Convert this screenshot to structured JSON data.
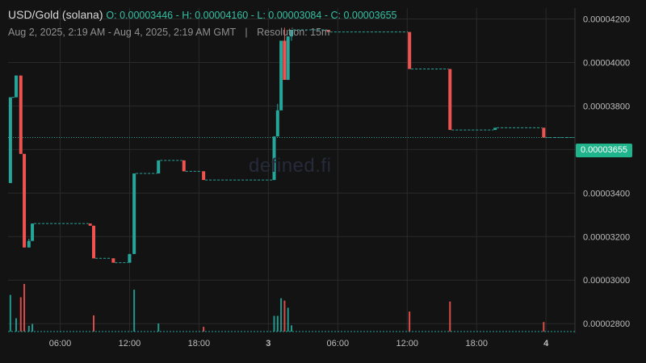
{
  "header": {
    "pair": "USD/Gold (solana)",
    "open_label": "O:",
    "open": "0.00003446",
    "high_label": "H:",
    "high": "0.00004160",
    "low_label": "L:",
    "low": "0.00003084",
    "close_label": "C:",
    "close": "0.00003655",
    "range": "Aug 2, 2025, 2:19 AM - Aug 4, 2025, 2:19 AM GMT",
    "separator": "|",
    "resolution": "Resolution: 15m"
  },
  "watermark": "defined.fi",
  "current_price": "0.00003655",
  "colors": {
    "up": "#26a69a",
    "down": "#ef5350",
    "bg": "#131313",
    "grid": "#2a2a2a",
    "tag": "#1fb48c"
  },
  "chart_data": {
    "type": "candlestick",
    "x_ticks": [
      {
        "label": "06:00",
        "hour": 4
      },
      {
        "label": "12:00",
        "hour": 10
      },
      {
        "label": "18:00",
        "hour": 16
      },
      {
        "label": "3",
        "hour": 22,
        "bold": true
      },
      {
        "label": "06:00",
        "hour": 28
      },
      {
        "label": "12:00",
        "hour": 34
      },
      {
        "label": "18:00",
        "hour": 40
      },
      {
        "label": "4",
        "hour": 46,
        "bold": true
      }
    ],
    "y_ticks": [
      "0.00004200",
      "0.00004000",
      "0.00003800",
      "0.00003600",
      "0.00003400",
      "0.00003200",
      "0.00003000",
      "0.00002800"
    ],
    "y_tick_values": [
      4.2,
      4.0,
      3.8,
      3.6,
      3.4,
      3.2,
      3.0,
      2.8
    ],
    "ylim": [
      2.76,
      4.25
    ],
    "y_unit_scale": 1e-05,
    "x_range_hours": [
      -0.5,
      48.5
    ],
    "candles": [
      {
        "t": -0.3,
        "o": 3.446,
        "h": 3.84,
        "l": 3.446,
        "c": 3.84
      },
      {
        "t": 0.2,
        "o": 3.84,
        "h": 3.94,
        "l": 3.84,
        "c": 3.94
      },
      {
        "t": 0.6,
        "o": 3.94,
        "h": 3.94,
        "l": 3.58,
        "c": 3.58
      },
      {
        "t": 0.9,
        "o": 3.58,
        "h": 3.58,
        "l": 3.15,
        "c": 3.15
      },
      {
        "t": 1.3,
        "o": 3.15,
        "h": 3.19,
        "l": 3.15,
        "c": 3.18
      },
      {
        "t": 1.6,
        "o": 3.18,
        "h": 3.26,
        "l": 3.18,
        "c": 3.26
      },
      {
        "t": 6.6,
        "o": 3.26,
        "h": 3.26,
        "l": 3.25,
        "c": 3.25
      },
      {
        "t": 6.9,
        "o": 3.25,
        "h": 3.25,
        "l": 3.1,
        "c": 3.1
      },
      {
        "t": 8.6,
        "o": 3.1,
        "h": 3.1,
        "l": 3.08,
        "c": 3.08
      },
      {
        "t": 10.0,
        "o": 3.08,
        "h": 3.12,
        "l": 3.08,
        "c": 3.12
      },
      {
        "t": 10.4,
        "o": 3.12,
        "h": 3.49,
        "l": 3.12,
        "c": 3.49
      },
      {
        "t": 12.5,
        "o": 3.49,
        "h": 3.55,
        "l": 3.49,
        "c": 3.55
      },
      {
        "t": 14.7,
        "o": 3.55,
        "h": 3.55,
        "l": 3.5,
        "c": 3.5
      },
      {
        "t": 16.4,
        "o": 3.5,
        "h": 3.5,
        "l": 3.46,
        "c": 3.46
      },
      {
        "t": 22.5,
        "o": 3.46,
        "h": 3.66,
        "l": 3.46,
        "c": 3.66
      },
      {
        "t": 22.8,
        "o": 3.66,
        "h": 3.81,
        "l": 3.66,
        "c": 3.78
      },
      {
        "t": 23.1,
        "o": 3.78,
        "h": 4.1,
        "l": 3.78,
        "c": 4.1
      },
      {
        "t": 23.4,
        "o": 4.1,
        "h": 4.16,
        "l": 3.92,
        "c": 3.92
      },
      {
        "t": 23.7,
        "o": 3.92,
        "h": 4.12,
        "l": 3.92,
        "c": 4.12
      },
      {
        "t": 24.0,
        "o": 4.12,
        "h": 4.15,
        "l": 4.1,
        "c": 4.15
      },
      {
        "t": 27.2,
        "o": 4.15,
        "h": 4.15,
        "l": 4.14,
        "c": 4.14
      },
      {
        "t": 34.2,
        "o": 4.14,
        "h": 4.14,
        "l": 3.97,
        "c": 3.97
      },
      {
        "t": 37.7,
        "o": 3.97,
        "h": 3.97,
        "l": 3.69,
        "c": 3.69
      },
      {
        "t": 41.6,
        "o": 3.69,
        "h": 3.7,
        "l": 3.69,
        "c": 3.7
      },
      {
        "t": 45.8,
        "o": 3.7,
        "h": 3.7,
        "l": 3.655,
        "c": 3.655
      }
    ],
    "volume_max": 1.0,
    "volumes": [
      {
        "t": -0.3,
        "v": 0.77,
        "up": true
      },
      {
        "t": 0.2,
        "v": 0.28,
        "up": true
      },
      {
        "t": 0.6,
        "v": 0.72,
        "up": false
      },
      {
        "t": 0.9,
        "v": 1.0,
        "up": false
      },
      {
        "t": 1.3,
        "v": 0.12,
        "up": true
      },
      {
        "t": 1.6,
        "v": 0.16,
        "up": true
      },
      {
        "t": 6.9,
        "v": 0.34,
        "up": false
      },
      {
        "t": 10.4,
        "v": 0.88,
        "up": true
      },
      {
        "t": 12.5,
        "v": 0.17,
        "up": true
      },
      {
        "t": 16.4,
        "v": 0.1,
        "up": false
      },
      {
        "t": 22.5,
        "v": 0.33,
        "up": true
      },
      {
        "t": 22.8,
        "v": 0.33,
        "up": true
      },
      {
        "t": 23.1,
        "v": 0.7,
        "up": true
      },
      {
        "t": 23.4,
        "v": 0.65,
        "up": false
      },
      {
        "t": 23.7,
        "v": 0.5,
        "up": true
      },
      {
        "t": 24.0,
        "v": 0.13,
        "up": true
      },
      {
        "t": 34.2,
        "v": 0.42,
        "up": false
      },
      {
        "t": 37.7,
        "v": 0.63,
        "up": false
      },
      {
        "t": 45.8,
        "v": 0.2,
        "up": false
      }
    ]
  }
}
